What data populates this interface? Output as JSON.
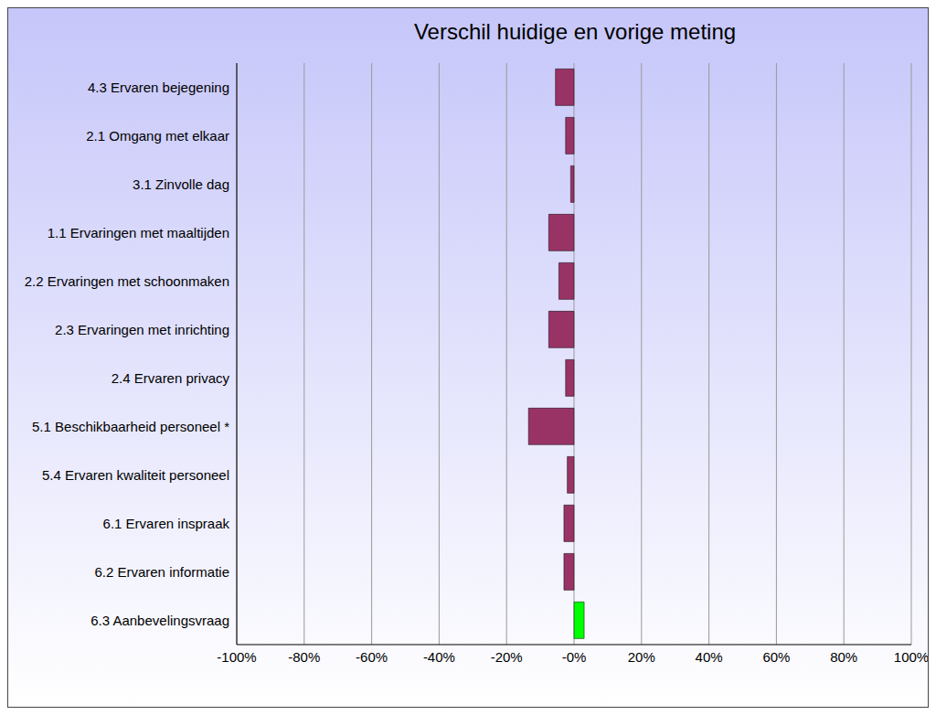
{
  "chart_data": {
    "type": "bar",
    "title": "Verschil huidige en vorige meting",
    "orientation": "horizontal",
    "categories": [
      "4.3 Ervaren bejegening",
      "2.1 Omgang met elkaar",
      "3.1 Zinvolle dag",
      "1.1 Ervaringen met maaltijden",
      "2.2 Ervaringen met schoonmaken",
      "2.3 Ervaringen met inrichting",
      "2.4 Ervaren privacy",
      "5.1 Beschikbaarheid personeel *",
      "5.4 Ervaren kwaliteit personeel",
      "6.1 Ervaren inspraak",
      "6.2 Ervaren informatie",
      "6.3 Aanbevelingsvraag"
    ],
    "values": [
      -5.5,
      -2.5,
      -1,
      -7.5,
      -4.5,
      -7.5,
      -2.5,
      -13.5,
      -2,
      -3,
      -3,
      3
    ],
    "colors": [
      "#993366",
      "#993366",
      "#993366",
      "#993366",
      "#993366",
      "#993366",
      "#993366",
      "#993366",
      "#993366",
      "#993366",
      "#993366",
      "#00ff00"
    ],
    "xlim": [
      -100,
      100
    ],
    "xticks": [
      {
        "value": -100,
        "label": "-100%"
      },
      {
        "value": -80,
        "label": "-80%"
      },
      {
        "value": -60,
        "label": "-60%"
      },
      {
        "value": -40,
        "label": "-40%"
      },
      {
        "value": -20,
        "label": "-20%"
      },
      {
        "value": 0,
        "label": "-0%"
      },
      {
        "value": 20,
        "label": "20%"
      },
      {
        "value": 40,
        "label": "40%"
      },
      {
        "value": 60,
        "label": "60%"
      },
      {
        "value": 80,
        "label": "80%"
      },
      {
        "value": 100,
        "label": "100%"
      }
    ],
    "grid": true
  }
}
